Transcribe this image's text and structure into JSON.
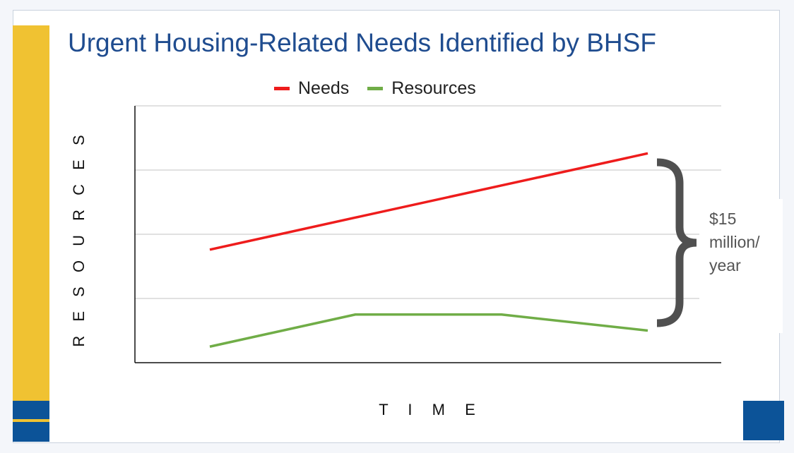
{
  "chart_data": {
    "type": "line",
    "title": "Urgent Housing-Related Needs Identified by BHSF",
    "xlabel": "T I M E",
    "ylabel": "R E S O U R C E S",
    "x": [
      1,
      2,
      3,
      4
    ],
    "ylim": [
      0,
      4
    ],
    "grid": true,
    "legend_placement": "top",
    "series": [
      {
        "name": "Needs",
        "color": "#ee1c1c",
        "values": [
          1.76,
          2.26,
          2.76,
          3.26
        ]
      },
      {
        "name": "Resources",
        "color": "#70ad47",
        "values": [
          0.25,
          0.75,
          0.75,
          0.5
        ]
      }
    ],
    "annotation": {
      "text_lines": [
        "$15",
        "million/",
        "year"
      ]
    }
  },
  "theme": {
    "title_color": "#1f4c8f",
    "accent_yellow": "#f0c232",
    "accent_blue": "#0c5398",
    "brace_color": "#505050"
  }
}
